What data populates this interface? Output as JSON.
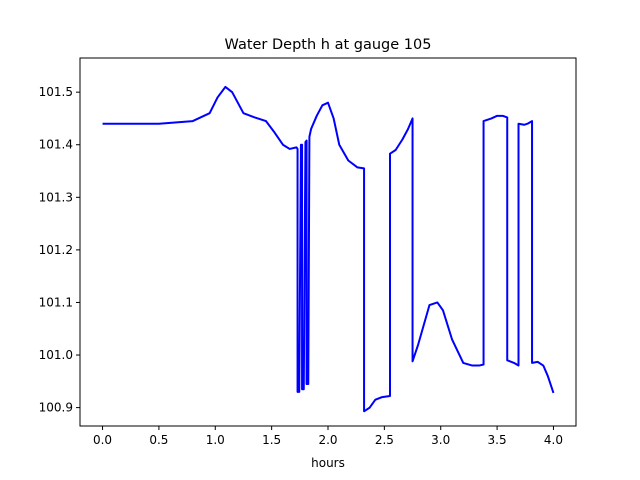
{
  "chart_data": {
    "type": "line",
    "title": "Water Depth h at gauge 105",
    "xlabel": "hours",
    "ylabel": "",
    "xlim": [
      -0.2,
      4.2
    ],
    "ylim": [
      100.865,
      101.565
    ],
    "xticks": [
      0.0,
      0.5,
      1.0,
      1.5,
      2.0,
      2.5,
      3.0,
      3.5,
      4.0
    ],
    "xtick_labels": [
      "0.0",
      "0.5",
      "1.0",
      "1.5",
      "2.0",
      "2.5",
      "3.0",
      "3.5",
      "4.0"
    ],
    "yticks": [
      100.9,
      101.0,
      101.1,
      101.2,
      101.3,
      101.4,
      101.5
    ],
    "ytick_labels": [
      "100.9",
      "101.0",
      "101.1",
      "101.2",
      "101.3",
      "101.4",
      "101.5"
    ],
    "grid": false,
    "series": [
      {
        "color": "#0000ff",
        "x": [
          0.0,
          0.5,
          0.8,
          0.95,
          1.02,
          1.09,
          1.15,
          1.25,
          1.35,
          1.45,
          1.52,
          1.6,
          1.66,
          1.72,
          1.73,
          1.73,
          1.745,
          1.76,
          1.77,
          1.77,
          1.785,
          1.8,
          1.81,
          1.81,
          1.825,
          1.835,
          1.85,
          1.9,
          1.95,
          2.0,
          2.05,
          2.1,
          2.18,
          2.26,
          2.32,
          2.32,
          2.37,
          2.42,
          2.48,
          2.55,
          2.55,
          2.6,
          2.66,
          2.71,
          2.75,
          2.75,
          2.8,
          2.9,
          2.97,
          3.02,
          3.1,
          3.2,
          3.28,
          3.34,
          3.38,
          3.38,
          3.45,
          3.5,
          3.55,
          3.59,
          3.59,
          3.65,
          3.69,
          3.69,
          3.74,
          3.77,
          3.81,
          3.81,
          3.86,
          3.91,
          3.95,
          4.0
        ],
        "y": [
          101.44,
          101.44,
          101.445,
          101.46,
          101.49,
          101.51,
          101.5,
          101.46,
          101.452,
          101.445,
          101.425,
          101.4,
          101.392,
          101.395,
          101.392,
          100.93,
          100.93,
          101.4,
          101.4,
          100.935,
          100.935,
          101.405,
          101.408,
          100.945,
          100.945,
          101.415,
          101.43,
          101.455,
          101.475,
          101.48,
          101.45,
          101.4,
          101.37,
          101.357,
          101.355,
          100.893,
          100.9,
          100.915,
          100.92,
          100.922,
          101.383,
          101.39,
          101.41,
          101.43,
          101.45,
          100.988,
          101.02,
          101.095,
          101.1,
          101.085,
          101.03,
          100.985,
          100.98,
          100.98,
          100.982,
          101.445,
          101.45,
          101.455,
          101.455,
          101.452,
          100.99,
          100.985,
          100.98,
          101.44,
          101.438,
          101.44,
          101.445,
          100.985,
          100.987,
          100.98,
          100.96,
          100.928
        ]
      }
    ]
  }
}
